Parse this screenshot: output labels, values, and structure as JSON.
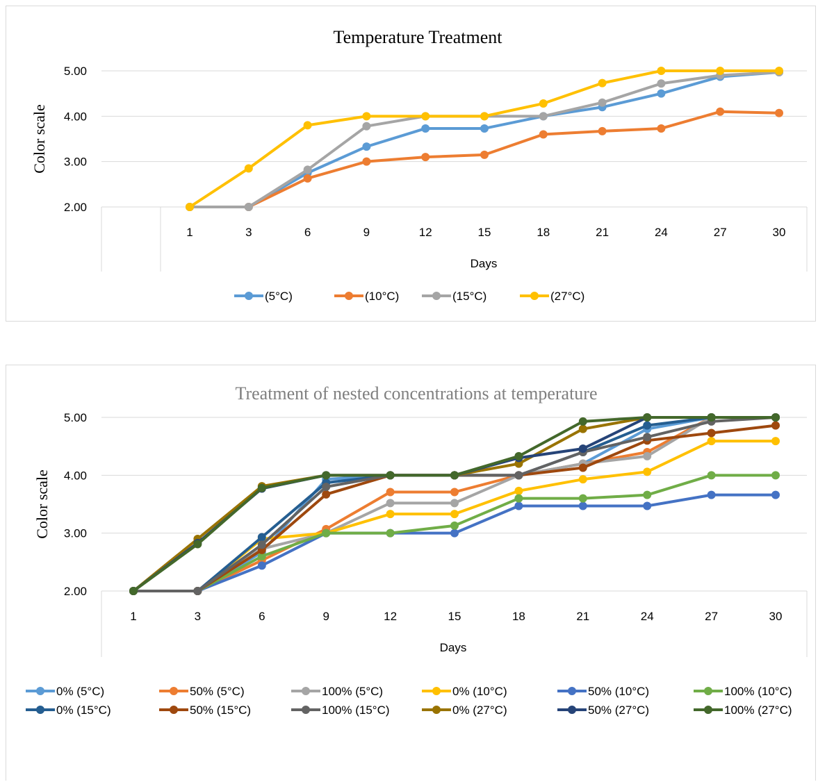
{
  "chart_data": [
    {
      "type": "line",
      "title": "Temperature Treatment",
      "xlabel": "Days",
      "ylabel": "Color scale",
      "ylim": [
        2,
        5
      ],
      "yticks": [
        "2.00",
        "3.00",
        "4.00",
        "5.00"
      ],
      "categories": [
        "1",
        "3",
        "6",
        "9",
        "12",
        "15",
        "18",
        "21",
        "24",
        "27",
        "30"
      ],
      "legend_position": "bottom",
      "grid": true,
      "series": [
        {
          "name": "(5°C)",
          "color": "#5b9bd5",
          "values": [
            2.0,
            2.0,
            2.75,
            3.33,
            3.73,
            3.73,
            4.0,
            4.2,
            4.5,
            4.87,
            4.97
          ]
        },
        {
          "name": "(10°C)",
          "color": "#ed7d31",
          "values": [
            2.0,
            2.0,
            2.63,
            3.0,
            3.1,
            3.15,
            3.6,
            3.67,
            3.73,
            4.1,
            4.07
          ]
        },
        {
          "name": "(15°C)",
          "color": "#a5a5a5",
          "values": [
            2.0,
            2.0,
            2.82,
            3.78,
            4.0,
            4.0,
            4.0,
            4.3,
            4.72,
            4.9,
            4.97
          ]
        },
        {
          "name": "(27°C)",
          "color": "#ffc000",
          "values": [
            2.0,
            2.85,
            3.8,
            4.0,
            4.0,
            4.0,
            4.28,
            4.73,
            5.0,
            5.0,
            5.0
          ]
        }
      ]
    },
    {
      "type": "line",
      "title": "Treatment of nested concentrations at temperature",
      "xlabel": "Days",
      "ylabel": "Color scale",
      "ylim": [
        2,
        5
      ],
      "yticks": [
        "2.00",
        "3.00",
        "4.00",
        "5.00"
      ],
      "categories": [
        "1",
        "3",
        "6",
        "9",
        "12",
        "15",
        "18",
        "21",
        "24",
        "27",
        "30"
      ],
      "legend_position": "bottom",
      "grid": true,
      "series": [
        {
          "name": "0% (5°C)",
          "color": "#5b9bd5",
          "values": [
            2.0,
            2.0,
            2.67,
            3.93,
            4.0,
            4.0,
            4.0,
            4.2,
            4.8,
            5.0,
            5.0
          ]
        },
        {
          "name": "50% (5°C)",
          "color": "#ed7d31",
          "values": [
            2.0,
            2.0,
            2.53,
            3.07,
            3.71,
            3.71,
            4.0,
            4.2,
            4.4,
            5.0,
            5.0
          ]
        },
        {
          "name": "100% (5°C)",
          "color": "#a5a5a5",
          "values": [
            2.0,
            2.0,
            2.73,
            3.0,
            3.52,
            3.52,
            4.0,
            4.2,
            4.33,
            5.0,
            5.0
          ]
        },
        {
          "name": "0% (10°C)",
          "color": "#ffc000",
          "values": [
            2.0,
            2.0,
            2.9,
            3.0,
            3.33,
            3.33,
            3.73,
            3.93,
            4.06,
            4.59,
            4.59
          ]
        },
        {
          "name": "50% (10°C)",
          "color": "#4472c4",
          "values": [
            2.0,
            2.0,
            2.44,
            3.0,
            3.0,
            3.0,
            3.47,
            3.47,
            3.47,
            3.66,
            3.66
          ]
        },
        {
          "name": "100% (10°C)",
          "color": "#70ad47",
          "values": [
            2.0,
            2.0,
            2.6,
            3.0,
            3.0,
            3.13,
            3.6,
            3.6,
            3.66,
            4.0,
            4.0
          ]
        },
        {
          "name": "0% (15°C)",
          "color": "#255e91",
          "values": [
            2.0,
            2.0,
            2.93,
            3.87,
            4.0,
            4.0,
            4.0,
            4.4,
            4.86,
            5.0,
            5.0
          ]
        },
        {
          "name": "50% (15°C)",
          "color": "#9e480e",
          "values": [
            2.0,
            2.0,
            2.71,
            3.67,
            4.0,
            4.0,
            4.0,
            4.13,
            4.6,
            4.73,
            4.86
          ]
        },
        {
          "name": "100% (15°C)",
          "color": "#636363",
          "values": [
            2.0,
            2.0,
            2.8,
            3.8,
            4.0,
            4.0,
            4.0,
            4.4,
            4.66,
            4.93,
            5.0
          ]
        },
        {
          "name": "0% (27°C)",
          "color": "#997300",
          "values": [
            2.0,
            2.9,
            3.81,
            4.0,
            4.0,
            4.0,
            4.2,
            4.8,
            5.0,
            5.0,
            5.0
          ]
        },
        {
          "name": "50% (27°C)",
          "color": "#264478",
          "values": [
            2.0,
            2.83,
            3.77,
            4.0,
            4.0,
            4.0,
            4.3,
            4.46,
            5.0,
            5.0,
            5.0
          ]
        },
        {
          "name": "100% (27°C)",
          "color": "#43682b",
          "values": [
            2.0,
            2.81,
            3.78,
            4.0,
            4.0,
            4.0,
            4.33,
            4.93,
            5.0,
            5.0,
            5.0
          ]
        }
      ]
    }
  ]
}
